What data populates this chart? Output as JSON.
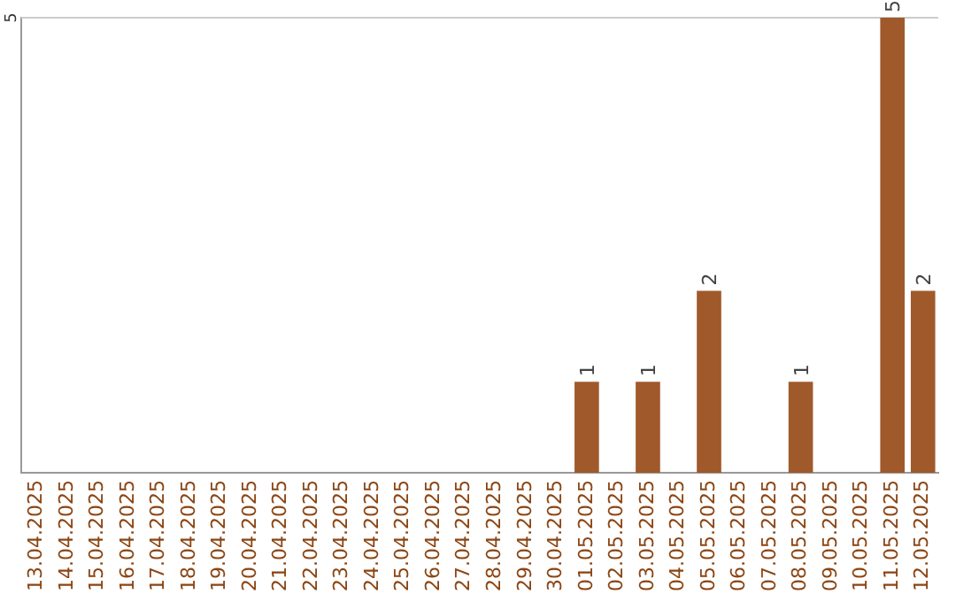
{
  "chart_data": {
    "type": "bar",
    "categories": [
      "13.04.2025",
      "14.04.2025",
      "15.04.2025",
      "16.04.2025",
      "17.04.2025",
      "18.04.2025",
      "19.04.2025",
      "20.04.2025",
      "21.04.2025",
      "22.04.2025",
      "23.04.2025",
      "24.04.2025",
      "25.04.2025",
      "26.04.2025",
      "27.04.2025",
      "28.04.2025",
      "29.04.2025",
      "30.04.2025",
      "01.05.2025",
      "02.05.2025",
      "03.05.2025",
      "04.05.2025",
      "05.05.2025",
      "06.05.2025",
      "07.05.2025",
      "08.05.2025",
      "09.05.2025",
      "10.05.2025",
      "11.05.2025",
      "12.05.2025"
    ],
    "values": [
      null,
      null,
      null,
      null,
      null,
      null,
      null,
      null,
      null,
      null,
      null,
      null,
      null,
      null,
      null,
      null,
      null,
      null,
      1,
      null,
      1,
      null,
      2,
      null,
      null,
      1,
      null,
      null,
      5,
      2
    ],
    "data_labels": true,
    "color": "#a0592b",
    "ref_lines": [
      {
        "axis": "y",
        "value": 5,
        "label": "5",
        "color": "#cccccc"
      }
    ],
    "legend": false
  }
}
